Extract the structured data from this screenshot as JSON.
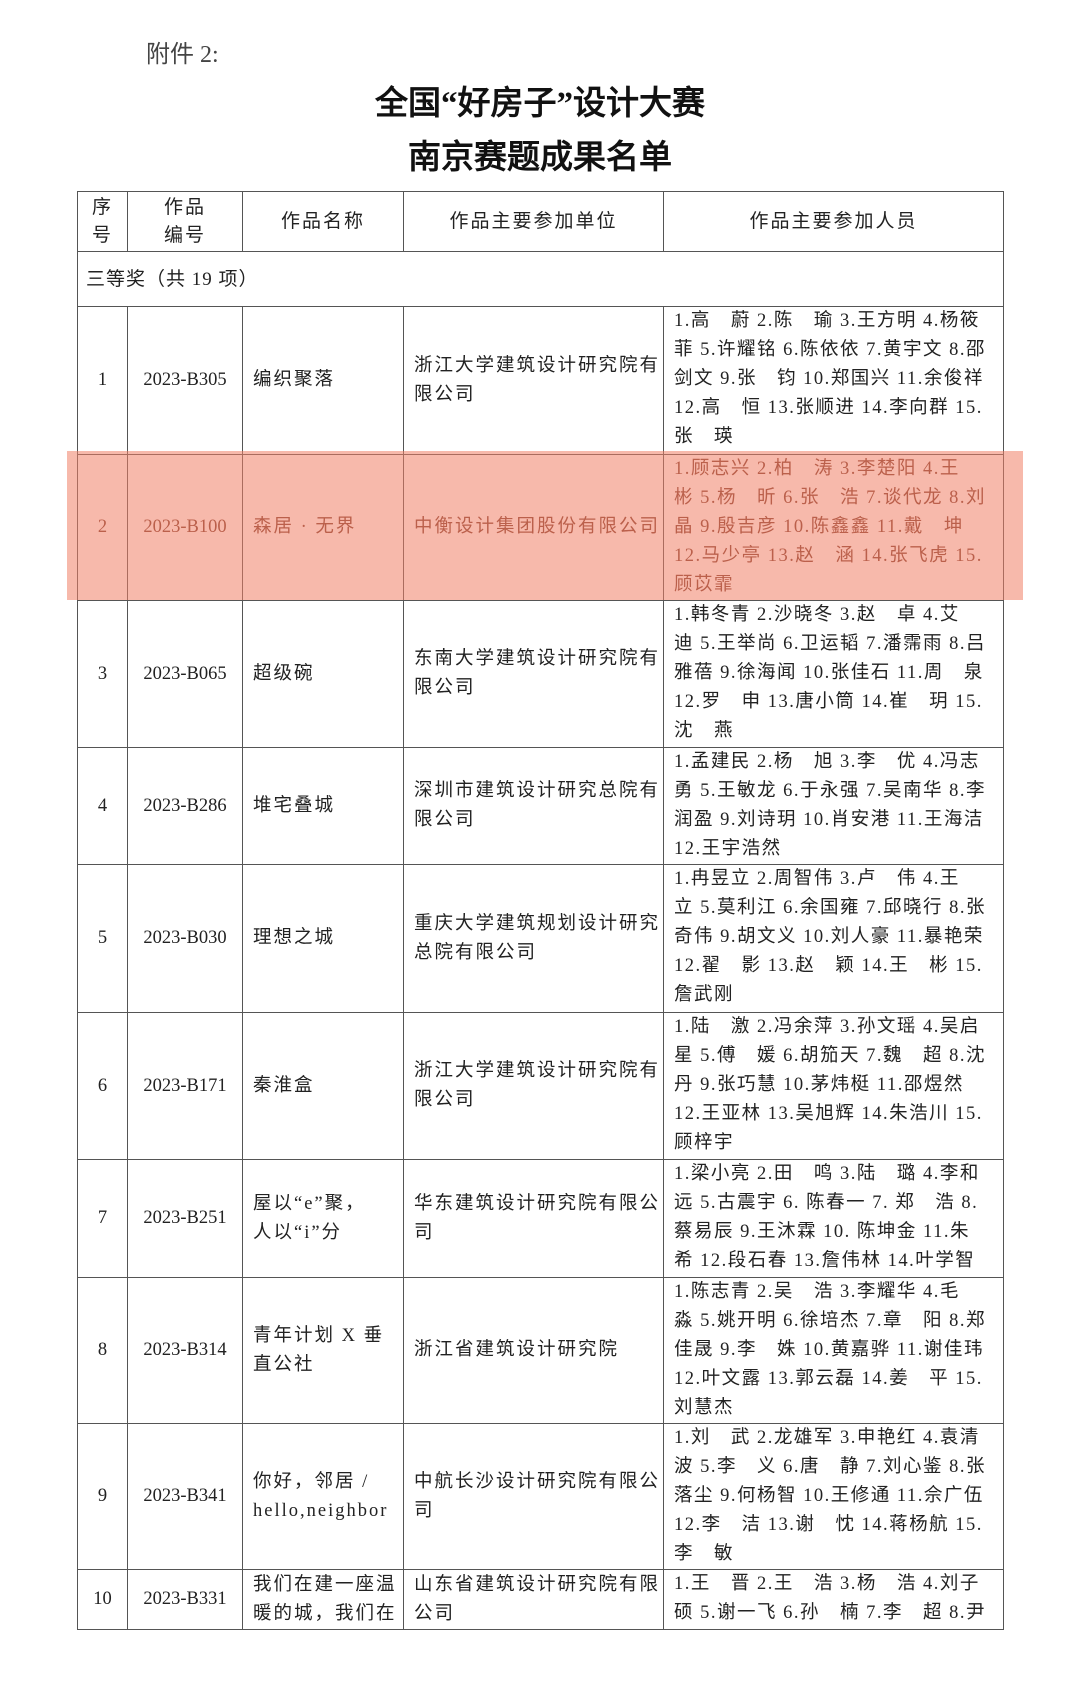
{
  "attachment_label": "附件 2:",
  "title_line1": "全国“好房子”设计大赛",
  "title_line2": "南京赛题成果名单",
  "highlight_color": "#f18066",
  "highlighted_row": 2,
  "table": {
    "headers": {
      "seq": [
        "序",
        "号"
      ],
      "code": [
        "作品",
        "编号"
      ],
      "name": "作品名称",
      "unit": "作品主要参加单位",
      "people": "作品主要参加人员"
    },
    "section_label": "三等奖（共 19 项）",
    "rows": [
      {
        "seq": "1",
        "code": "2023-B305",
        "name": [
          "编织聚落"
        ],
        "unit": [
          "浙江大学建筑设计研究院有",
          "限公司"
        ],
        "people": [
          "1.高　蔚 2.陈　瑜 3.王方明 4.杨筱",
          "菲 5.许耀铭 6.陈依依 7.黄宇文 8.邵",
          "剑文 9.张　钧 10.郑国兴 11.余俊祥",
          "12.高　恒 13.张顺进 14.李向群 15.",
          "张　瑛"
        ]
      },
      {
        "seq": "2",
        "code": "2023-B100",
        "name": [
          "森居 · 无界"
        ],
        "unit": [
          "中衡设计集团股份有限公司"
        ],
        "people": [
          "1.顾志兴 2.柏　涛 3.李楚阳 4.王",
          "彬 5.杨　昕 6.张　浩 7.谈代龙 8.刘",
          "晶 9.殷吉彦 10.陈鑫鑫 11.戴　坤",
          "12.马少亭 13.赵　涵 14.张飞虎 15.",
          "顾苡霏"
        ]
      },
      {
        "seq": "3",
        "code": "2023-B065",
        "name": [
          "超级碗"
        ],
        "unit": [
          "东南大学建筑设计研究院有",
          "限公司"
        ],
        "people": [
          "1.韩冬青 2.沙晓冬 3.赵　卓 4.艾",
          "迪 5.王举尚 6.卫运韬 7.潘霈雨 8.吕",
          "雅蓓 9.徐海闻 10.张佳石 11.周　泉",
          "12.罗　申 13.唐小筒 14.崔　玥 15.",
          "沈　燕"
        ]
      },
      {
        "seq": "4",
        "code": "2023-B286",
        "name": [
          "堆宅叠城"
        ],
        "unit": [
          "深圳市建筑设计研究总院有",
          "限公司"
        ],
        "people": [
          "1.孟建民 2.杨　旭 3.李　优 4.冯志",
          "勇 5.王敏龙 6.于永强 7.吴南华 8.李",
          "润盈 9.刘诗玥 10.肖安港 11.王海洁",
          "12.王宇浩然"
        ]
      },
      {
        "seq": "5",
        "code": "2023-B030",
        "name": [
          "理想之城"
        ],
        "unit": [
          "重庆大学建筑规划设计研究",
          "总院有限公司"
        ],
        "people": [
          "1.冉昱立 2.周智伟 3.卢　伟 4.王",
          "立 5.莫利江 6.余国雍 7.邱晓行 8.张",
          "奇伟 9.胡文义 10.刘人豪 11.暴艳荣",
          "12.翟　影 13.赵　颖 14.王　彬 15.",
          "詹武刚"
        ]
      },
      {
        "seq": "6",
        "code": "2023-B171",
        "name": [
          "秦淮盒"
        ],
        "unit": [
          "浙江大学建筑设计研究院有",
          "限公司"
        ],
        "people": [
          "1.陆　激 2.冯余萍 3.孙文瑶 4.吴启",
          "星 5.傅　媛 6.胡笳天 7.魏　超 8.沈",
          "丹 9.张巧慧 10.茅炜梃 11.邵煜然",
          "12.王亚林 13.吴旭辉 14.朱浩川 15.",
          "顾梓宇"
        ]
      },
      {
        "seq": "7",
        "code": "2023-B251",
        "name": [
          "屋以“e”聚，",
          "人以“i”分"
        ],
        "unit": [
          "华东建筑设计研究院有限公",
          "司"
        ],
        "people": [
          "1.梁小亮 2.田　鸣 3.陆　璐 4.李和",
          "远 5.古震宇 6. 陈春一 7. 郑　浩 8.",
          "蔡易辰 9.王沐霖 10. 陈坤金 11.朱",
          "希 12.段石春 13.詹伟林 14.叶学智"
        ]
      },
      {
        "seq": "8",
        "code": "2023-B314",
        "name": [
          "青年计划 X 垂",
          "直公社"
        ],
        "unit": [
          "浙江省建筑设计研究院"
        ],
        "people": [
          "1.陈志青 2.吴　浩 3.李耀华 4.毛",
          "淼 5.姚开明 6.徐培杰 7.章　阳 8.郑",
          "佳晟 9.李　姝 10.黄嘉骅 11.谢佳玮",
          "12.叶文露 13.郭云磊 14.姜　平 15.",
          "刘慧杰"
        ]
      },
      {
        "seq": "9",
        "code": "2023-B341",
        "name": [
          "你好，邻居 /",
          "hello,neighbor"
        ],
        "unit": [
          "中航长沙设计研究院有限公",
          "司"
        ],
        "people": [
          "1.刘　武 2.龙雄军 3.申艳红 4.袁清",
          "波 5.李　义 6.唐　静 7.刘心鉴 8.张",
          "落尘 9.何杨智 10.王修通 11.佘广伍",
          "12.李　洁 13.谢　忱 14.蒋杨航 15.",
          "李　敏"
        ]
      },
      {
        "seq": "10",
        "code": "2023-B331",
        "name": [
          "我们在建一座温",
          "暖的城，我们在"
        ],
        "unit": [
          "山东省建筑设计研究院有限",
          "公司"
        ],
        "people": [
          "1.王　晋 2.王　浩 3.杨　浩 4.刘子",
          "硕 5.谢一飞 6.孙　楠 7.李　超 8.尹"
        ]
      }
    ]
  }
}
